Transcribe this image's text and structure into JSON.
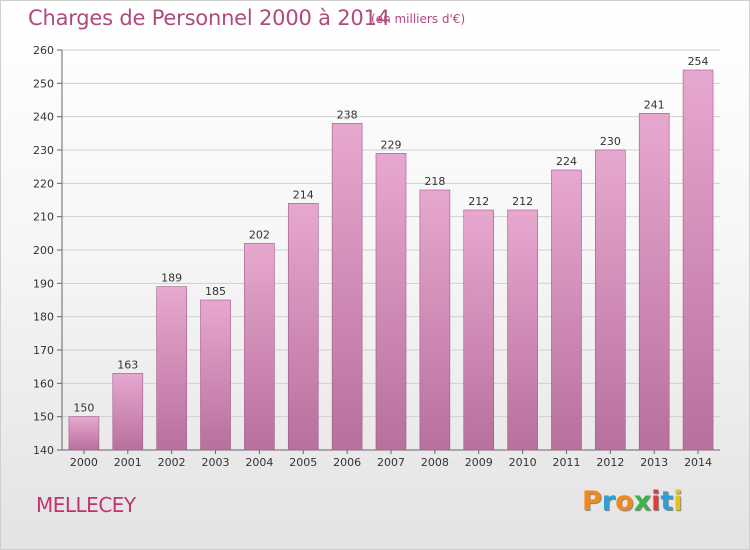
{
  "header": {
    "title": "Charges de Personnel 2000 à 2014",
    "subtitle": "(en milliers d'€)"
  },
  "footer": {
    "commune": "MELLECEY",
    "logo_text": "Proxiti",
    "logo_colors": [
      "#f08a1c",
      "#2f9fd6",
      "#f08a1c",
      "#3ab54a",
      "#e23b3b",
      "#2f9fd6",
      "#e3c21d"
    ]
  },
  "colors": {
    "bar_top": "#e7a8cf",
    "bar_bottom": "#b8709d",
    "bar_edge": "#a05a87",
    "accent": "#b04a7e"
  },
  "chart_data": {
    "type": "bar",
    "title": "Charges de Personnel 2000 à 2014",
    "subtitle": "(en milliers d'€)",
    "categories": [
      "2000",
      "2001",
      "2002",
      "2003",
      "2004",
      "2005",
      "2006",
      "2007",
      "2008",
      "2009",
      "2010",
      "2011",
      "2012",
      "2013",
      "2014"
    ],
    "values": [
      150,
      163,
      189,
      185,
      202,
      214,
      238,
      229,
      218,
      212,
      212,
      224,
      230,
      241,
      254
    ],
    "data_labels": [
      "150",
      "163",
      "189",
      "185",
      "202",
      "214",
      "238",
      "229",
      "218",
      "212",
      "212",
      "224",
      "230",
      "241",
      "254"
    ],
    "yticks": [
      "140",
      "150",
      "160",
      "170",
      "180",
      "190",
      "200",
      "210",
      "220",
      "230",
      "240",
      "250",
      "260"
    ],
    "ylim": [
      140,
      260
    ],
    "xlabel": "",
    "ylabel": "",
    "grid": true
  }
}
